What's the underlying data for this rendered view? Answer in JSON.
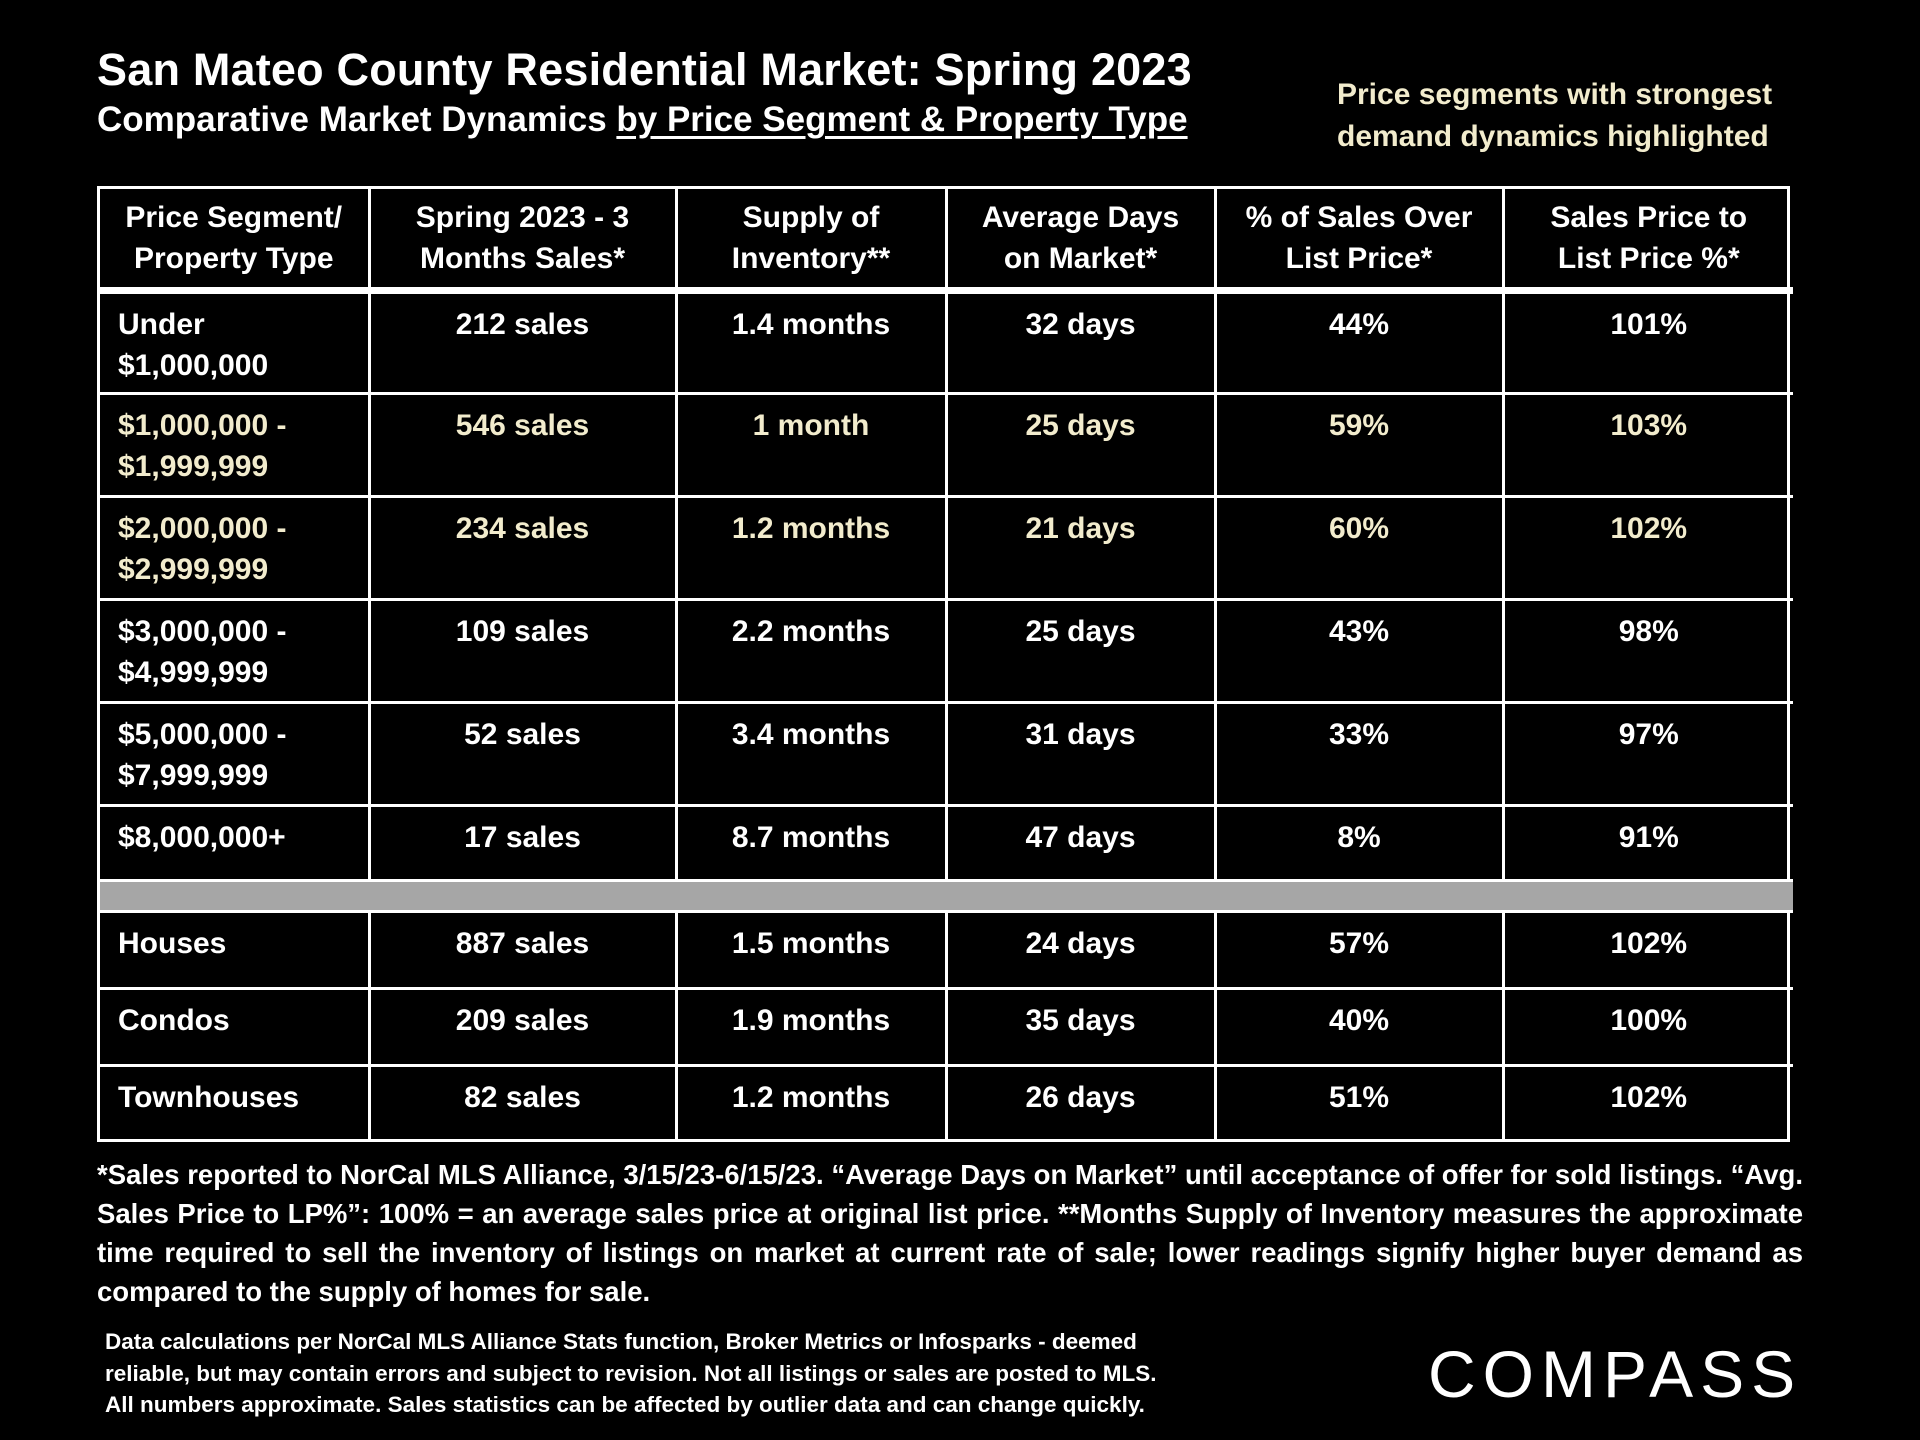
{
  "header": {
    "title": "San Mateo County Residential Market:  Spring 2023",
    "subtitle_plain": "Comparative Market Dynamics ",
    "subtitle_underlined": "by Price Segment & Property Type",
    "highlight_note_line1": "Price segments with strongest",
    "highlight_note_line2": "demand dynamics highlighted"
  },
  "colors": {
    "background": "#000000",
    "text": "#ffffff",
    "highlight": "#f2eccd",
    "divider": "#a6a6a6"
  },
  "table": {
    "headers": [
      {
        "l1": "Price Segment/",
        "l2": "Property Type"
      },
      {
        "l1": "Spring 2023 - 3",
        "l2": "Months Sales*"
      },
      {
        "l1": "Supply of",
        "l2": "Inventory**"
      },
      {
        "l1": "Average Days",
        "l2": "on Market*"
      },
      {
        "l1": "% of Sales Over",
        "l2": "List Price*"
      },
      {
        "l1": "Sales Price to",
        "l2": "List Price %*"
      }
    ],
    "price_rows": [
      {
        "seg_l1": "Under",
        "seg_l2": "$1,000,000",
        "sales": "212 sales",
        "supply": "1.4 months",
        "dom": "32 days",
        "over": "44%",
        "sp_lp": "101%",
        "highlighted": false
      },
      {
        "seg_l1": "$1,000,000 -",
        "seg_l2": "$1,999,999",
        "sales": "546 sales",
        "supply": "1 month",
        "dom": "25 days",
        "over": "59%",
        "sp_lp": "103%",
        "highlighted": true
      },
      {
        "seg_l1": "$2,000,000 -",
        "seg_l2": "$2,999,999",
        "sales": "234 sales",
        "supply": "1.2 months",
        "dom": "21 days",
        "over": "60%",
        "sp_lp": "102%",
        "highlighted": true
      },
      {
        "seg_l1": "$3,000,000 -",
        "seg_l2": "$4,999,999",
        "sales": "109 sales",
        "supply": "2.2 months",
        "dom": "25 days",
        "over": "43%",
        "sp_lp": "98%",
        "highlighted": false
      },
      {
        "seg_l1": "$5,000,000 -",
        "seg_l2": "$7,999,999",
        "sales": "52 sales",
        "supply": "3.4 months",
        "dom": "31 days",
        "over": "33%",
        "sp_lp": "97%",
        "highlighted": false
      },
      {
        "seg_l1": "$8,000,000+",
        "seg_l2": "",
        "sales": "17 sales",
        "supply": "8.7 months",
        "dom": "47 days",
        "over": "8%",
        "sp_lp": "91%",
        "highlighted": false
      }
    ],
    "type_rows": [
      {
        "seg_l1": "Houses",
        "sales": "887 sales",
        "supply": "1.5 months",
        "dom": "24 days",
        "over": "57%",
        "sp_lp": "102%"
      },
      {
        "seg_l1": "Condos",
        "sales": "209 sales",
        "supply": "1.9 months",
        "dom": "35 days",
        "over": "40%",
        "sp_lp": "100%"
      },
      {
        "seg_l1": "Townhouses",
        "sales": "82 sales",
        "supply": "1.2 months",
        "dom": "26 days",
        "over": "51%",
        "sp_lp": "102%"
      }
    ]
  },
  "footnote": "*Sales reported to NorCal MLS Alliance, 3/15/23-6/15/23. “Average Days on Market” until acceptance of offer for sold listings. “Avg. Sales Price to LP%”: 100% = an average sales price at original list price. **Months Supply of Inventory measures the approximate time required to sell the inventory of listings on market at current rate of sale; lower readings signify higher buyer demand as compared to the supply of homes for sale.",
  "disclaimer_line1": "Data calculations per NorCal MLS Alliance Stats function, Broker Metrics or Infosparks - deemed",
  "disclaimer_line2": "reliable, but may contain errors and subject to revision.  Not all listings or sales are posted to MLS.",
  "disclaimer_line3": "All numbers approximate. Sales statistics can be affected by outlier data and can change quickly.",
  "logo_text": "COMPASS"
}
